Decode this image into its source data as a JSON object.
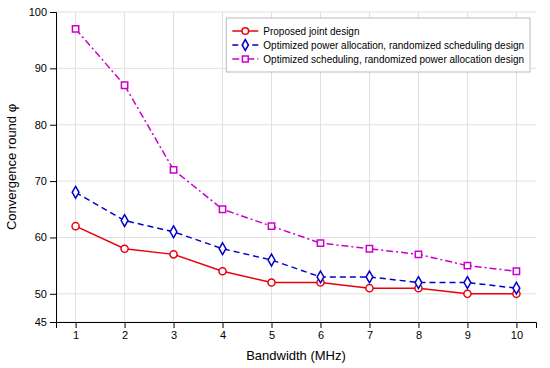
{
  "chart_data": {
    "type": "line",
    "xlabel": "Bandwidth (MHz)",
    "ylabel": "Convergence round φ",
    "x": [
      1,
      2,
      3,
      4,
      5,
      6,
      7,
      8,
      9,
      10
    ],
    "series": [
      {
        "name": "Proposed joint design",
        "color": "#e8000d",
        "marker": "circle",
        "line_style": "solid",
        "values": [
          62,
          58,
          57,
          54,
          52,
          52,
          51,
          51,
          50,
          50
        ]
      },
      {
        "name": "Optimized power allocation, randomized scheduling design",
        "color": "#0000cc",
        "marker": "diamond",
        "line_style": "dashed",
        "values": [
          68,
          63,
          61,
          58,
          56,
          53,
          53,
          52,
          52,
          51
        ]
      },
      {
        "name": "Optimized scheduling, randomized power allocation design",
        "color": "#cc00cc",
        "marker": "square",
        "line_style": "dashdot",
        "values": [
          97,
          87,
          72,
          65,
          62,
          59,
          58,
          57,
          55,
          54
        ]
      }
    ],
    "xlim": [
      0.6,
      10.4
    ],
    "ylim": [
      45,
      100
    ],
    "xticks": [
      1,
      2,
      3,
      4,
      5,
      6,
      7,
      8,
      9,
      10
    ],
    "yticks": [
      45,
      50,
      60,
      70,
      80,
      90,
      100
    ],
    "grid": true,
    "legend": "upper right"
  }
}
